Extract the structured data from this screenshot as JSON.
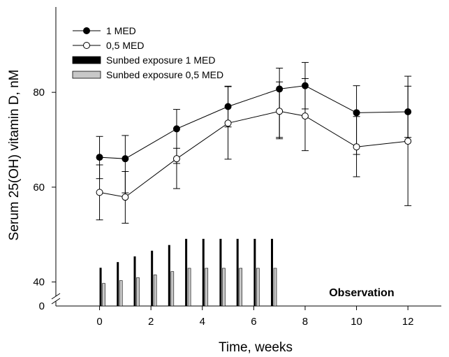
{
  "chart_data": {
    "type": "line",
    "xlabel": "Time, weeks",
    "ylabel": "Serum 25(OH) vitamin D, nM",
    "xlim": [
      -1.7,
      13.3
    ],
    "x_ticks": [
      0,
      2,
      4,
      6,
      8,
      10,
      12
    ],
    "y_ticks": [
      40,
      60,
      80
    ],
    "y_break_label": "0",
    "y_axis_break": true,
    "ylim_upper": [
      37,
      98
    ],
    "grid": false,
    "legend_position": "top-left",
    "series": [
      {
        "name": "1 MED",
        "marker": "filled-circle",
        "color": "#000000",
        "x": [
          0,
          1,
          3,
          5,
          7,
          8,
          10,
          12
        ],
        "y": [
          66.3,
          66.0,
          72.3,
          77.0,
          80.7,
          81.4,
          75.7,
          75.9
        ],
        "err_low": [
          61.8,
          58.8,
          65.0,
          72.7,
          70.5,
          76.5,
          66.9,
          70.5
        ],
        "err_high": [
          70.7,
          70.9,
          76.4,
          81.3,
          85.1,
          86.3,
          81.4,
          81.3
        ]
      },
      {
        "name": "0,5 MED",
        "marker": "open-circle",
        "color": "#000000",
        "x": [
          0,
          1,
          3,
          5,
          7,
          8,
          10,
          12
        ],
        "y": [
          58.9,
          57.9,
          66.0,
          73.5,
          76.0,
          75.0,
          68.5,
          69.7
        ],
        "err_low": [
          53.1,
          52.4,
          59.7,
          65.9,
          70.2,
          67.7,
          62.2,
          56.1
        ],
        "err_high": [
          64.7,
          63.3,
          68.2,
          81.2,
          82.2,
          82.9,
          74.9,
          83.4
        ]
      }
    ],
    "bars": [
      {
        "name": "Sunbed exposure 1 MED",
        "color": "#000000",
        "x": [
          0,
          0.67,
          1.33,
          2,
          2.67,
          3.33,
          4,
          4.67,
          5.33,
          6,
          6.67
        ],
        "y": [
          43,
          44.2,
          45.4,
          46.6,
          47.8,
          49.1,
          49.1,
          49.1,
          49.1,
          49.1,
          49.1
        ]
      },
      {
        "name": "Sunbed exposure 0,5 MED",
        "color": "#c8c8c8",
        "x": [
          0,
          0.67,
          1.33,
          2,
          2.67,
          3.33,
          4,
          4.67,
          5.33,
          6,
          6.67
        ],
        "y": [
          39.7,
          40.3,
          40.9,
          41.5,
          42.2,
          42.9,
          42.9,
          42.9,
          42.9,
          42.9,
          42.9
        ]
      }
    ],
    "annotations": [
      {
        "text": "Observation",
        "x": 10.2,
        "y": 41.5
      }
    ]
  }
}
